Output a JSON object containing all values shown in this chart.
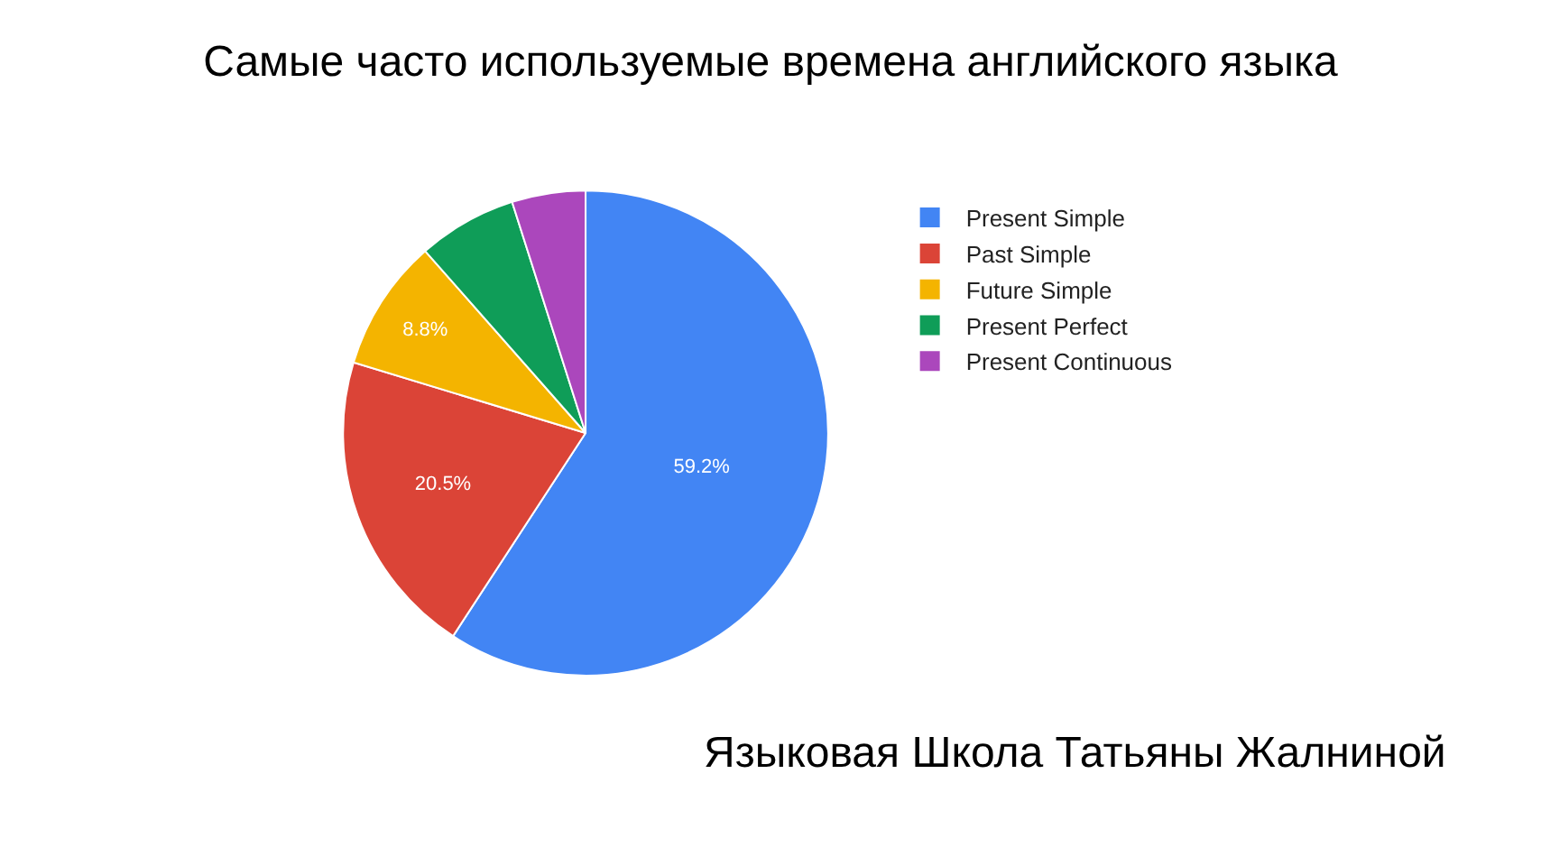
{
  "chart_data": {
    "type": "pie",
    "title": "Самые часто используемые времена английского языка",
    "categories": [
      "Present Simple",
      "Past Simple",
      "Future Simple",
      "Present Perfect",
      "Present Continuous"
    ],
    "values": [
      59.2,
      20.5,
      8.8,
      6.6,
      4.9
    ],
    "colors": [
      "#4285f4",
      "#db4437",
      "#f4b400",
      "#0f9d58",
      "#ab47bc"
    ],
    "value_labels": [
      "59.2%",
      "20.5%",
      "8.8%",
      null,
      null
    ],
    "legend": "top right",
    "annotations": [
      "Языковая Школа Татьяны Жалниной"
    ]
  }
}
